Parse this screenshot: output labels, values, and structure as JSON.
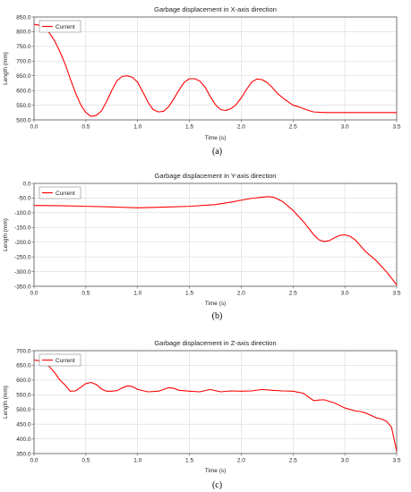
{
  "chart_data": [
    {
      "type": "line",
      "title": "Garbage displacement in X-axis direction",
      "xlabel": "Time (s)",
      "ylabel": "Length (mm)",
      "caption": "(a)",
      "xlim": [
        0,
        3.5
      ],
      "ylim": [
        500,
        850
      ],
      "xticks": [
        0,
        0.5,
        1,
        1.5,
        2,
        2.5,
        3,
        3.5
      ],
      "xtick_labels": [
        "0.0",
        "0.5",
        "1.0",
        "1.5",
        "2.0",
        "2.5",
        "3.0",
        "3.5"
      ],
      "yticks": [
        500,
        550,
        600,
        650,
        700,
        750,
        800,
        850
      ],
      "ytick_labels": [
        "500.0",
        "550.0",
        "600.0",
        "650.0",
        "700.0",
        "750.0",
        "800.0",
        "850.0"
      ],
      "grid": true,
      "legend_position": "top-left",
      "series": [
        {
          "name": "Current",
          "color": "#ff0000",
          "x": [
            0,
            0.05,
            0.1,
            0.15,
            0.2,
            0.25,
            0.3,
            0.35,
            0.4,
            0.45,
            0.5,
            0.55,
            0.6,
            0.65,
            0.7,
            0.75,
            0.8,
            0.85,
            0.9,
            0.95,
            1.0,
            1.05,
            1.1,
            1.15,
            1.2,
            1.25,
            1.3,
            1.35,
            1.4,
            1.45,
            1.5,
            1.55,
            1.6,
            1.65,
            1.7,
            1.75,
            1.8,
            1.85,
            1.9,
            1.95,
            2.0,
            2.05,
            2.1,
            2.15,
            2.2,
            2.25,
            2.3,
            2.35,
            2.4,
            2.45,
            2.5,
            2.55,
            2.6,
            2.65,
            2.7,
            2.8,
            2.9,
            3.0,
            3.1,
            3.2,
            3.3,
            3.4,
            3.5
          ],
          "y": [
            825,
            822,
            812,
            795,
            768,
            732,
            690,
            640,
            592,
            552,
            525,
            512,
            515,
            530,
            562,
            600,
            633,
            648,
            650,
            645,
            628,
            595,
            560,
            535,
            527,
            529,
            545,
            572,
            602,
            628,
            640,
            640,
            632,
            612,
            580,
            552,
            535,
            532,
            538,
            552,
            575,
            603,
            628,
            639,
            637,
            627,
            610,
            590,
            575,
            562,
            550,
            545,
            538,
            532,
            527,
            525,
            525,
            525,
            525,
            525,
            525,
            525,
            525
          ]
        }
      ]
    },
    {
      "type": "line",
      "title": "Garbage displacement in Y-axis direction",
      "xlabel": "Time (s)",
      "ylabel": "Length (mm)",
      "caption": "(b)",
      "xlim": [
        0,
        3.5
      ],
      "ylim": [
        -350,
        0
      ],
      "xticks": [
        0,
        0.5,
        1,
        1.5,
        2,
        2.5,
        3,
        3.5
      ],
      "xtick_labels": [
        "0.0",
        "0.5",
        "1.0",
        "1.5",
        "2.0",
        "2.5",
        "3.0",
        "3.5"
      ],
      "yticks": [
        -350,
        -300,
        -250,
        -200,
        -150,
        -100,
        -50,
        0
      ],
      "ytick_labels": [
        "-350.0",
        "-300.0",
        "-250.0",
        "-200.0",
        "-150.0",
        "-100.0",
        "-50.0",
        "0.0"
      ],
      "grid": true,
      "legend_position": "top-left",
      "series": [
        {
          "name": "Current",
          "color": "#ff0000",
          "x": [
            0,
            0.25,
            0.5,
            0.75,
            1.0,
            1.25,
            1.5,
            1.75,
            1.9,
            2.0,
            2.1,
            2.2,
            2.27,
            2.32,
            2.4,
            2.5,
            2.6,
            2.7,
            2.75,
            2.8,
            2.85,
            2.9,
            2.95,
            3.0,
            3.05,
            3.1,
            3.15,
            3.2,
            3.3,
            3.4,
            3.5
          ],
          "y": [
            -75,
            -76,
            -78,
            -80,
            -83,
            -81,
            -78,
            -72,
            -64,
            -57,
            -51,
            -47,
            -45,
            -48,
            -62,
            -92,
            -130,
            -175,
            -192,
            -198,
            -195,
            -185,
            -177,
            -175,
            -180,
            -192,
            -212,
            -232,
            -262,
            -300,
            -345
          ]
        }
      ]
    },
    {
      "type": "line",
      "title": "Garbage displacement in Z-axis direction",
      "xlabel": "Time (s)",
      "ylabel": "Length (mm)",
      "caption": "(c)",
      "xlim": [
        0,
        3.5
      ],
      "ylim": [
        350,
        700
      ],
      "xticks": [
        0,
        0.5,
        1,
        1.5,
        2,
        2.5,
        3,
        3.5
      ],
      "xtick_labels": [
        "0.0",
        "0.5",
        "1.0",
        "1.5",
        "2.0",
        "2.5",
        "3.0",
        "3.5"
      ],
      "yticks": [
        350,
        400,
        450,
        500,
        550,
        600,
        650,
        700
      ],
      "ytick_labels": [
        "350.0",
        "400.0",
        "450.0",
        "500.0",
        "550.0",
        "600.0",
        "650.0",
        "700.0"
      ],
      "grid": true,
      "legend_position": "top-left",
      "series": [
        {
          "name": "Current",
          "color": "#ff0000",
          "x": [
            0,
            0.05,
            0.1,
            0.15,
            0.2,
            0.25,
            0.3,
            0.35,
            0.4,
            0.45,
            0.5,
            0.55,
            0.6,
            0.65,
            0.7,
            0.75,
            0.8,
            0.85,
            0.9,
            0.95,
            1.0,
            1.1,
            1.2,
            1.25,
            1.3,
            1.35,
            1.4,
            1.5,
            1.6,
            1.7,
            1.8,
            1.9,
            2.0,
            2.1,
            2.2,
            2.3,
            2.4,
            2.5,
            2.6,
            2.65,
            2.7,
            2.75,
            2.8,
            2.9,
            3.0,
            3.1,
            3.15,
            3.2,
            3.25,
            3.3,
            3.35,
            3.4,
            3.45,
            3.5
          ],
          "y": [
            668,
            666,
            660,
            645,
            625,
            600,
            583,
            562,
            563,
            575,
            588,
            592,
            585,
            570,
            562,
            562,
            564,
            573,
            580,
            578,
            568,
            560,
            562,
            568,
            574,
            572,
            565,
            562,
            560,
            568,
            560,
            563,
            562,
            563,
            568,
            565,
            563,
            562,
            555,
            542,
            530,
            532,
            533,
            522,
            505,
            495,
            493,
            488,
            480,
            472,
            468,
            460,
            440,
            358
          ]
        }
      ]
    }
  ]
}
